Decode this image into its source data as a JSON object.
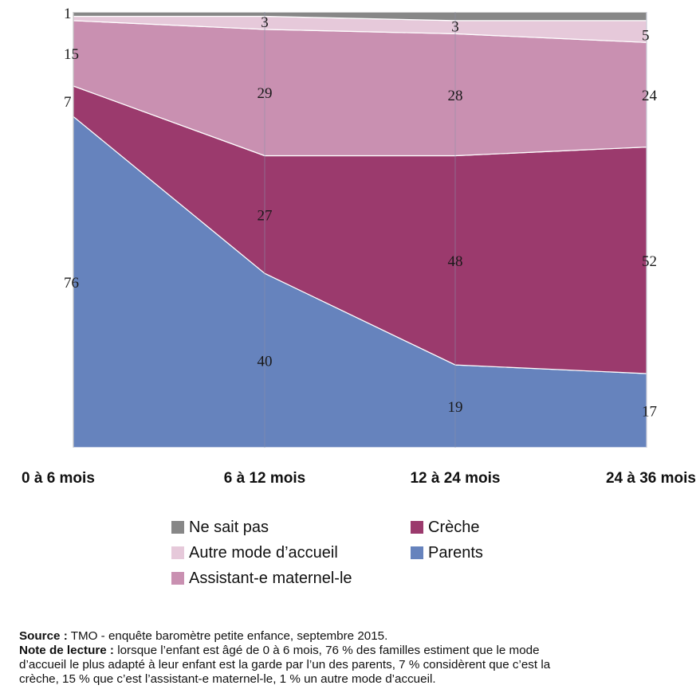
{
  "chart_data": {
    "type": "area",
    "stacked": true,
    "categories": [
      "0 à 6 mois",
      "6 à 12 mois",
      "12 à 24 mois",
      "24 à 36 mois"
    ],
    "series": [
      {
        "name": "Parents",
        "values": [
          76,
          40,
          19,
          17
        ],
        "color": "#6683bd"
      },
      {
        "name": "Crèche",
        "values": [
          7,
          27,
          48,
          52
        ],
        "color": "#9b3a6d"
      },
      {
        "name": "Assistant-e maternel-le",
        "values": [
          15,
          29,
          28,
          24
        ],
        "color": "#c990b1"
      },
      {
        "name": "Autre mode d’accueil",
        "values": [
          1,
          3,
          3,
          5
        ],
        "color": "#e6c9da"
      },
      {
        "name": "Ne sait pas",
        "values": [
          1,
          1,
          2,
          2
        ],
        "color": "#878787"
      }
    ],
    "ylim": [
      0,
      100
    ],
    "grid": false,
    "legend_position": "bottom"
  },
  "legend": [
    {
      "label": "Ne sait pas",
      "color": "#878787"
    },
    {
      "label": "Crèche",
      "color": "#9b3a6d"
    },
    {
      "label": "Autre mode d’accueil",
      "color": "#e6c9da"
    },
    {
      "label": "Parents",
      "color": "#6683bd"
    },
    {
      "label": "Assistant-e maternel-le",
      "color": "#c990b1"
    }
  ],
  "notes": {
    "source_label": "Source :",
    "source_text": " TMO - enquête baromètre petite enfance, septembre 2015.",
    "reading_label": "Note de lecture :",
    "reading_line1": " lorsque l’enfant est âgé de 0 à 6 mois, 76 % des familles estiment que le mode",
    "reading_line2": "d’accueil le plus adapté à leur enfant est la garde par l’un des parents, 7 % considèrent que c’est la",
    "reading_line3": "crèche, 15 % que c’est l’assistant-e maternel-le, 1 % un autre mode d’accueil."
  }
}
